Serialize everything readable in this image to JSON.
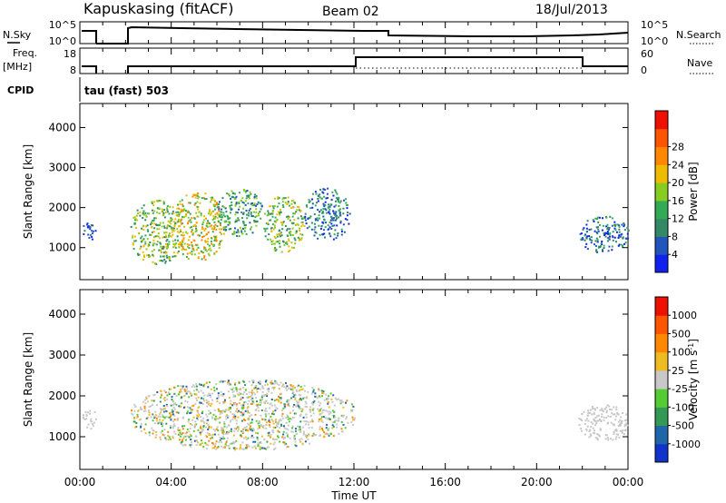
{
  "header": {
    "station": "Kapuskasing (fitACF)",
    "beam": "Beam 02",
    "date": "18/Jul/2013"
  },
  "panels": {
    "noise": {
      "left_label": "N.Sky",
      "left_ticks": [
        "10^5",
        "10^0"
      ],
      "right_ticks": [
        "10^5",
        "10^0"
      ],
      "right_label": "N.Search"
    },
    "freq": {
      "left_label_1": "Freq.",
      "left_label_2": "[MHz]",
      "left_ticks": [
        "18",
        "8"
      ],
      "right_ticks": [
        "60",
        "0"
      ],
      "right_label": "Nave"
    },
    "cpid": {
      "left_label": "CPID",
      "mode_text": "tau (fast) 503"
    }
  },
  "chart_data": [
    {
      "type": "heatmap",
      "panel": "power",
      "ylabel": "Slant Range [km]",
      "yticks": [
        1000,
        2000,
        3000,
        4000
      ],
      "ylim": [
        200,
        4600
      ],
      "xlim_hours": [
        0,
        24
      ],
      "colorbar": {
        "label": "Power [dB]",
        "ticks": [
          "4",
          "8",
          "12",
          "16",
          "20",
          "24",
          "28"
        ],
        "colors": [
          "#1122ee",
          "#2255bb",
          "#338866",
          "#33aa55",
          "#88cc22",
          "#eebb00",
          "#ff8800",
          "#ff5500",
          "#ee1100"
        ]
      },
      "echo_regions": [
        {
          "t0": 0.1,
          "t1": 0.7,
          "r0": 1200,
          "r1": 1700,
          "level": 1
        },
        {
          "t0": 2.2,
          "t1": 4.5,
          "r0": 600,
          "r1": 2200,
          "level": 4
        },
        {
          "t0": 4.0,
          "t1": 6.3,
          "r0": 700,
          "r1": 2400,
          "level": 5
        },
        {
          "t0": 6.0,
          "t1": 8.0,
          "r0": 1300,
          "r1": 2500,
          "level": 3
        },
        {
          "t0": 8.0,
          "t1": 9.8,
          "r0": 900,
          "r1": 2300,
          "level": 4
        },
        {
          "t0": 9.8,
          "t1": 11.8,
          "r0": 1200,
          "r1": 2500,
          "level": 2
        },
        {
          "t0": 21.8,
          "t1": 24.0,
          "r0": 900,
          "r1": 1800,
          "level": 2
        }
      ]
    },
    {
      "type": "heatmap",
      "panel": "velocity",
      "ylabel": "Slant Range [km]",
      "yticks": [
        1000,
        2000,
        3000,
        4000
      ],
      "ylim": [
        200,
        4600
      ],
      "xlim_hours": [
        0,
        24
      ],
      "xticks": [
        "00:00",
        "04:00",
        "08:00",
        "12:00",
        "16:00",
        "20:00",
        "00:00"
      ],
      "xlabel": "Time UT",
      "colorbar": {
        "label": "Velocity [m s",
        "ticks": [
          "1000",
          "500",
          "100",
          "25",
          "-25",
          "-100",
          "-500",
          "-1000"
        ],
        "colors": [
          "#1133cc",
          "#2266aa",
          "#339955",
          "#55cc33",
          "#c8c8c8",
          "#eebb22",
          "#ff8800",
          "#ff5500",
          "#ee1100"
        ]
      },
      "echo_regions": [
        {
          "t0": 0.1,
          "t1": 0.7,
          "r0": 1200,
          "r1": 1700,
          "class": "ground"
        },
        {
          "t0": 2.2,
          "t1": 12.0,
          "r0": 700,
          "r1": 2400,
          "class": "mixed"
        },
        {
          "t0": 21.8,
          "t1": 24.0,
          "r0": 900,
          "r1": 1800,
          "class": "ground"
        }
      ]
    }
  ]
}
